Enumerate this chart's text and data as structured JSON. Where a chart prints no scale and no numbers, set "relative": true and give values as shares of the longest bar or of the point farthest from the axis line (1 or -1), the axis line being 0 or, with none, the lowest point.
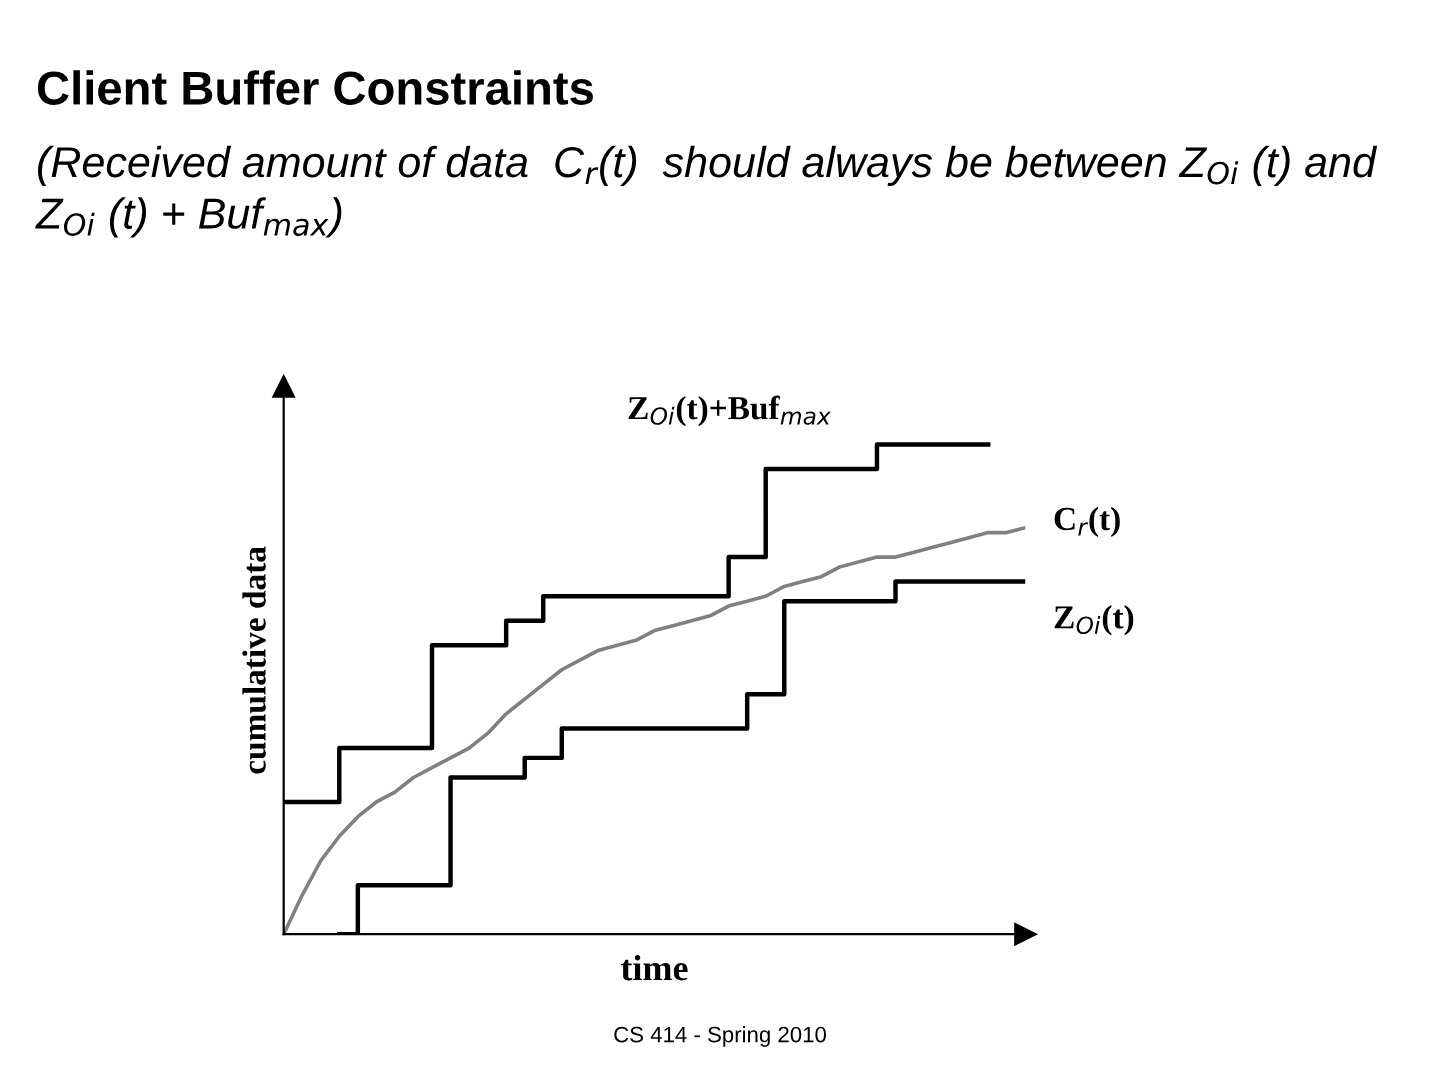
{
  "chart_data": {
    "type": "line",
    "relative": true,
    "title": "Client Buffer Constraints",
    "subtitle": "(Received amount of data  C$_{r}$(t)  should always be between Z$_{Oi}$ (t) and Z$_{Oi}$ (t) + Buf$_{max}$)",
    "xlabel": "time",
    "ylabel": "cumulative data",
    "categories": [
      null,
      null,
      null,
      null,
      null,
      null,
      null,
      null,
      null,
      null,
      null,
      null,
      null,
      null,
      null,
      null,
      null,
      null,
      null,
      null,
      null,
      null,
      null,
      null,
      null,
      null,
      null,
      null,
      null,
      null,
      null,
      null,
      null,
      null,
      null,
      null,
      null,
      null,
      null,
      null,
      null
    ],
    "series": [
      {
        "name": "Z$_{Oi}$(t)+Buf$_{max}$",
        "type": "step",
        "color": "#000000",
        "values": [
          0.27,
          0.27,
          0.27,
          0.38,
          0.38,
          0.38,
          0.38,
          0.38,
          0.59,
          0.59,
          0.59,
          0.59,
          0.64,
          0.64,
          0.69,
          0.69,
          0.69,
          0.69,
          0.69,
          0.69,
          0.69,
          0.69,
          0.69,
          0.69,
          0.77,
          0.77,
          0.95,
          0.95,
          0.95,
          0.95,
          0.95,
          0.95,
          1,
          1,
          1,
          1,
          1,
          1,
          1,
          null,
          null
        ]
      },
      {
        "name": "C$_{r}$(t)",
        "color": "#808080",
        "values": [
          0,
          0.08,
          0.15,
          0.2,
          0.24,
          0.27,
          0.29,
          0.32,
          0.34,
          0.36,
          0.38,
          0.41,
          0.45,
          0.48,
          0.51,
          0.54,
          0.56,
          0.58,
          0.59,
          0.6,
          0.62,
          0.63,
          0.64,
          0.65,
          0.67,
          0.68,
          0.69,
          0.71,
          0.72,
          0.73,
          0.75,
          0.76,
          0.77,
          0.77,
          0.78,
          0.79,
          0.8,
          0.81,
          0.82,
          0.82,
          0.83
        ]
      },
      {
        "name": "Z$_{Oi}$(t)",
        "type": "step",
        "color": "#000000",
        "values": [
          null,
          null,
          null,
          0,
          0.1,
          0.1,
          0.1,
          0.1,
          0.1,
          0.32,
          0.32,
          0.32,
          0.32,
          0.36,
          0.36,
          0.42,
          0.42,
          0.42,
          0.42,
          0.42,
          0.42,
          0.42,
          0.42,
          0.42,
          0.42,
          0.49,
          0.49,
          0.68,
          0.68,
          0.68,
          0.68,
          0.68,
          0.68,
          0.72,
          0.72,
          0.72,
          0.72,
          0.72,
          0.72,
          0.72,
          0.72
        ]
      }
    ],
    "annotations": [
      "CS 414 - Spring 2010"
    ]
  }
}
